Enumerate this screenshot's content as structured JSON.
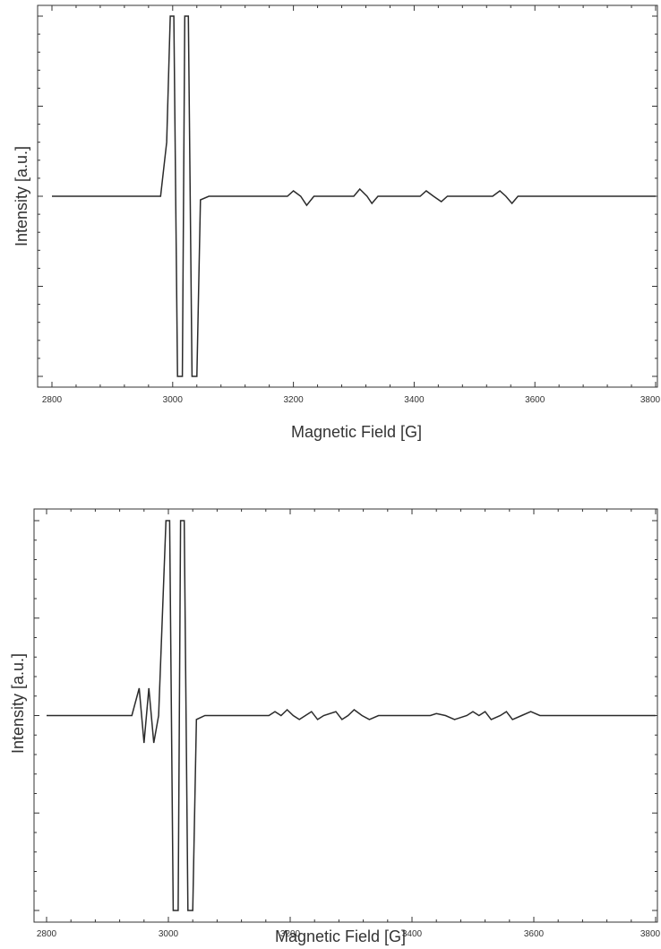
{
  "chart_data": [
    {
      "type": "line",
      "title": "",
      "xlabel": "Magnetic Field [G]",
      "ylabel": "Intensity [a.u.]",
      "xlim": [
        2800,
        3800
      ],
      "ylim": [
        -1.05,
        1.05
      ],
      "x_ticks": [
        "2800",
        "3000",
        "3200",
        "3400",
        "3600",
        "3800"
      ],
      "y_ticks_labeled": false,
      "grid": false,
      "series": [
        {
          "points": [
            [
              2800,
              0
            ],
            [
              2980,
              0
            ],
            [
              2990,
              0.3
            ],
            [
              2996,
              1
            ],
            [
              3002,
              1
            ],
            [
              3008,
              -1
            ],
            [
              3016,
              -1
            ],
            [
              3020,
              1
            ],
            [
              3026,
              1
            ],
            [
              3032,
              -1
            ],
            [
              3040,
              -1
            ],
            [
              3046,
              -0.02
            ],
            [
              3060,
              0
            ],
            [
              3190,
              0
            ],
            [
              3200,
              0.03
            ],
            [
              3212,
              0
            ],
            [
              3222,
              -0.05
            ],
            [
              3234,
              0
            ],
            [
              3300,
              0
            ],
            [
              3310,
              0.04
            ],
            [
              3322,
              0
            ],
            [
              3330,
              -0.04
            ],
            [
              3340,
              0
            ],
            [
              3410,
              0
            ],
            [
              3420,
              0.03
            ],
            [
              3432,
              0
            ],
            [
              3445,
              -0.03
            ],
            [
              3455,
              0
            ],
            [
              3530,
              0
            ],
            [
              3542,
              0.03
            ],
            [
              3552,
              0
            ],
            [
              3562,
              -0.04
            ],
            [
              3572,
              0
            ],
            [
              3800,
              0
            ]
          ]
        }
      ]
    },
    {
      "type": "line",
      "title": "",
      "xlabel": "Magnetic Field [G]",
      "ylabel": "Intensity [a.u.]",
      "xlim": [
        2800,
        3800
      ],
      "ylim": [
        -1.05,
        1.05
      ],
      "x_ticks": [
        "2800",
        "3000",
        "3200",
        "3400",
        "3600",
        "3800"
      ],
      "y_ticks_labeled": false,
      "grid": false,
      "series": [
        {
          "points": [
            [
              2800,
              0
            ],
            [
              2940,
              0
            ],
            [
              2952,
              0.14
            ],
            [
              2960,
              -0.14
            ],
            [
              2968,
              0.14
            ],
            [
              2976,
              -0.14
            ],
            [
              2984,
              0
            ],
            [
              2996,
              1
            ],
            [
              3002,
              1
            ],
            [
              3008,
              -1
            ],
            [
              3016,
              -1
            ],
            [
              3020,
              1
            ],
            [
              3026,
              1
            ],
            [
              3032,
              -1
            ],
            [
              3040,
              -1
            ],
            [
              3046,
              -0.02
            ],
            [
              3060,
              0
            ],
            [
              3165,
              0
            ],
            [
              3175,
              0.02
            ],
            [
              3185,
              0
            ],
            [
              3195,
              0.03
            ],
            [
              3205,
              0
            ],
            [
              3215,
              -0.02
            ],
            [
              3225,
              0
            ],
            [
              3235,
              0.02
            ],
            [
              3245,
              -0.02
            ],
            [
              3255,
              0
            ],
            [
              3275,
              0.02
            ],
            [
              3285,
              -0.02
            ],
            [
              3295,
              0
            ],
            [
              3305,
              0.03
            ],
            [
              3318,
              0
            ],
            [
              3330,
              -0.02
            ],
            [
              3345,
              0
            ],
            [
              3430,
              0
            ],
            [
              3440,
              0.01
            ],
            [
              3455,
              0
            ],
            [
              3470,
              -0.02
            ],
            [
              3490,
              0
            ],
            [
              3500,
              0.02
            ],
            [
              3510,
              0
            ],
            [
              3520,
              0.02
            ],
            [
              3530,
              -0.02
            ],
            [
              3545,
              0
            ],
            [
              3555,
              0.02
            ],
            [
              3565,
              -0.02
            ],
            [
              3580,
              0
            ],
            [
              3595,
              0.02
            ],
            [
              3610,
              0
            ],
            [
              3800,
              0
            ]
          ]
        }
      ]
    }
  ]
}
